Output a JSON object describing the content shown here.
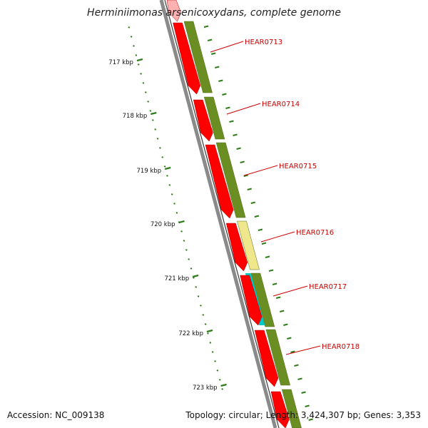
{
  "title": "Herminiimonas arsenicoxydans, complete genome",
  "footer": {
    "accession": "Accession: NC_009138",
    "summary": "Topology: circular; Length: 3,424,307 bp; Genes: 3,353"
  },
  "colors": {
    "cds": "#ff0000",
    "cds_highlight": "#ffb0b0",
    "rrna_track": "#6b8e23",
    "pale_feature": "#f0e68c",
    "cyan_feature": "#00c8c8",
    "backbone": "#8a8a8a",
    "ticks": "#2e7d1a",
    "label": "#cc0000"
  },
  "ruler": [
    {
      "label": "717 kbp"
    },
    {
      "label": "718 kbp"
    },
    {
      "label": "719 kbp"
    },
    {
      "label": "720 kbp"
    },
    {
      "label": "721 kbp"
    },
    {
      "label": "722 kbp"
    },
    {
      "label": "723 kbp"
    }
  ],
  "genes": [
    {
      "label": "HEAR0713"
    },
    {
      "label": "HEAR0714"
    },
    {
      "label": "HEAR0715"
    },
    {
      "label": "HEAR0716"
    },
    {
      "label": "HEAR0717"
    },
    {
      "label": "HEAR0718"
    }
  ]
}
